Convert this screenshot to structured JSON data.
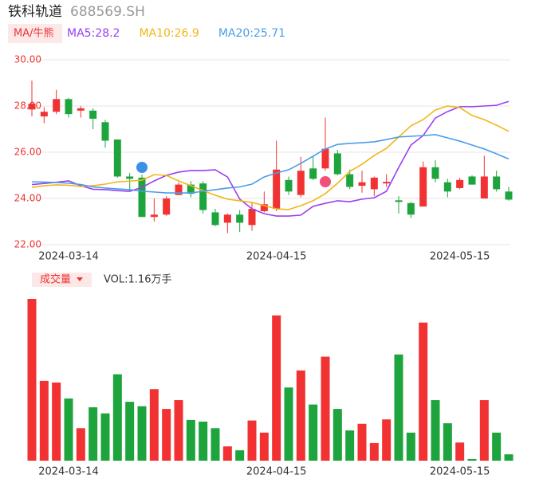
{
  "header": {
    "name": "铁科轨道",
    "code": "688569.SH"
  },
  "chart_data": {
    "type": "candlestick",
    "indicator_badge": "MA/牛熊",
    "categories": [
      null,
      null,
      null,
      "2024-03-14",
      null,
      null,
      null,
      null,
      null,
      null,
      null,
      null,
      null,
      null,
      null,
      null,
      null,
      null,
      null,
      null,
      "2024-04-15",
      null,
      null,
      null,
      null,
      null,
      null,
      null,
      null,
      null,
      null,
      null,
      null,
      null,
      null,
      "2024-05-15",
      null,
      null,
      null,
      null
    ],
    "open": [
      27.85,
      27.55,
      27.75,
      28.3,
      27.8,
      27.8,
      27.3,
      26.55,
      24.95,
      24.9,
      23.2,
      23.3,
      24.15,
      24.6,
      24.65,
      23.4,
      22.95,
      23.3,
      22.85,
      23.45,
      23.55,
      24.8,
      24.15,
      25.3,
      25.3,
      25.95,
      25.05,
      24.55,
      24.4,
      24.65,
      23.92,
      23.8,
      23.65,
      25.35,
      24.7,
      24.45,
      24.95,
      24.0,
      24.95,
      24.3
    ],
    "high": [
      29.1,
      27.95,
      28.7,
      28.35,
      28.0,
      27.9,
      27.4,
      26.55,
      25.1,
      25.1,
      24.0,
      24.1,
      24.7,
      24.75,
      24.75,
      23.55,
      23.35,
      23.5,
      23.8,
      24.3,
      26.5,
      24.95,
      25.8,
      25.85,
      27.5,
      26.1,
      25.25,
      25.2,
      24.95,
      25.05,
      24.1,
      23.85,
      25.6,
      25.65,
      24.85,
      24.9,
      25.0,
      25.85,
      25.2,
      24.5
    ],
    "low": [
      27.55,
      27.25,
      27.65,
      27.5,
      27.5,
      27.0,
      26.2,
      24.9,
      24.3,
      23.2,
      23.0,
      23.25,
      24.15,
      24.05,
      23.35,
      22.8,
      22.5,
      22.55,
      22.6,
      23.4,
      23.45,
      24.15,
      24.05,
      24.8,
      25.2,
      25.0,
      24.4,
      24.25,
      24.1,
      24.5,
      23.35,
      23.15,
      23.65,
      24.7,
      24.05,
      24.4,
      24.6,
      24.0,
      24.3,
      23.9
    ],
    "close": [
      28.1,
      27.75,
      28.3,
      27.65,
      27.9,
      27.45,
      26.5,
      24.95,
      24.85,
      23.2,
      23.3,
      24.0,
      24.6,
      24.2,
      23.5,
      22.85,
      23.3,
      22.95,
      23.55,
      23.75,
      25.25,
      24.3,
      25.2,
      24.85,
      26.15,
      25.05,
      24.5,
      24.7,
      24.9,
      24.72,
      23.85,
      23.3,
      25.35,
      24.85,
      24.3,
      24.8,
      24.6,
      24.95,
      24.4,
      23.95
    ],
    "up_color": "#f23232",
    "down_color": "#1ea43c",
    "series": [
      {
        "name": "MA5:28.2",
        "color": "#9b3ff0",
        "values": [
          24.6,
          24.65,
          24.7,
          24.76,
          24.55,
          24.4,
          24.38,
          24.34,
          24.31,
          24.48,
          24.76,
          25.0,
          25.14,
          25.21,
          25.21,
          25.24,
          24.93,
          23.97,
          23.55,
          23.34,
          23.24,
          23.24,
          23.28,
          23.66,
          23.79,
          23.9,
          23.86,
          23.97,
          24.03,
          24.31,
          25.34,
          26.31,
          26.72,
          27.48,
          27.76,
          27.97,
          27.97,
          28.0,
          28.03,
          28.2
        ]
      },
      {
        "name": "MA10:26.9",
        "color": "#f2b616",
        "values": [
          24.48,
          24.55,
          24.59,
          24.57,
          24.52,
          24.55,
          24.62,
          24.72,
          24.75,
          24.79,
          25.03,
          25.0,
          24.76,
          24.55,
          24.34,
          24.14,
          23.97,
          23.9,
          23.83,
          23.69,
          23.55,
          23.52,
          23.69,
          23.9,
          24.21,
          24.66,
          25.17,
          25.48,
          25.86,
          26.17,
          26.66,
          27.14,
          27.41,
          27.83,
          28.0,
          27.93,
          27.59,
          27.41,
          27.17,
          26.9
        ]
      },
      {
        "name": "MA20:25.71",
        "color": "#4b9de8",
        "values": [
          24.72,
          24.71,
          24.69,
          24.66,
          24.6,
          24.5,
          24.45,
          24.41,
          24.38,
          24.31,
          24.28,
          24.24,
          24.24,
          24.24,
          24.31,
          24.38,
          24.45,
          24.5,
          24.62,
          24.93,
          25.1,
          25.24,
          25.52,
          25.83,
          26.14,
          26.34,
          26.38,
          26.41,
          26.45,
          26.55,
          26.66,
          26.69,
          26.72,
          26.76,
          26.62,
          26.48,
          26.31,
          26.14,
          25.93,
          25.71
        ]
      }
    ],
    "ylim": [
      22,
      30
    ],
    "yticks": [
      {
        "value": 30,
        "label": "30.00"
      },
      {
        "value": 28,
        "label": "28.00"
      },
      {
        "value": 26,
        "label": "26.00"
      },
      {
        "value": 24,
        "label": "24.00"
      },
      {
        "value": 22,
        "label": "22.00"
      }
    ],
    "grid": true,
    "volume": {
      "title": "成交量",
      "label": "VOL:1.16万手",
      "values": [
        29.4,
        14.5,
        14.2,
        11.3,
        5.9,
        9.7,
        8.6,
        15.7,
        10.7,
        9.9,
        13.0,
        9.4,
        11.0,
        7.4,
        7.1,
        5.9,
        2.6,
        1.9,
        7.3,
        5.1,
        26.4,
        13.3,
        16.4,
        10.2,
        18.9,
        9.4,
        5.5,
        6.7,
        3.2,
        7.5,
        19.3,
        5.1,
        25.1,
        11.0,
        6.8,
        3.3,
        0.3,
        11.0,
        5.1,
        1.16
      ]
    }
  }
}
